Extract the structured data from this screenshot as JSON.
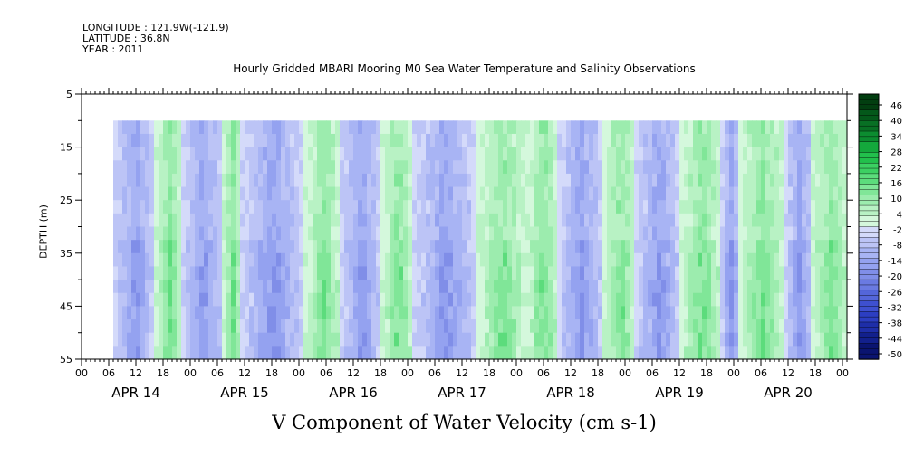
{
  "header": {
    "longitude": "LONGITUDE : 121.9W(-121.9)",
    "latitude": "LATITUDE : 36.8N",
    "year": "YEAR : 2011"
  },
  "chart_data": {
    "type": "heatmap",
    "title": "Hourly Gridded MBARI Mooring M0 Sea Water Temperature and Salinity Observations",
    "xlabel": "V Component of Water Velocity (cm s-1)",
    "ylabel": "DEPTH (m)",
    "y_axis": {
      "range": [
        5,
        55
      ],
      "inverted": true,
      "ticks": [
        5,
        15,
        25,
        35,
        45,
        55
      ]
    },
    "x_axis": {
      "hour_ticks": [
        "00",
        "06",
        "12",
        "18",
        "00",
        "06",
        "12",
        "18",
        "00",
        "06",
        "12",
        "18",
        "00",
        "06",
        "12",
        "18",
        "00",
        "06",
        "12",
        "18",
        "00",
        "06",
        "12",
        "18",
        "00",
        "06",
        "12",
        "18",
        "00"
      ],
      "day_labels": [
        "APR 14",
        "APR 15",
        "APR 16",
        "APR 17",
        "APR 18",
        "APR 19",
        "APR 20"
      ],
      "range_hours": [
        0,
        169
      ]
    },
    "data_extent": {
      "start_hour": 7,
      "end_hour": 169,
      "min_depth": 10,
      "max_depth": 55
    },
    "colorbar": {
      "labels": [
        "46",
        "40",
        "34",
        "28",
        "22",
        "16",
        "10",
        "4",
        "-2",
        "-8",
        "-14",
        "-20",
        "-26",
        "-32",
        "-38",
        "-44",
        "-50"
      ],
      "range": [
        -50,
        50
      ]
    },
    "bands": [
      {
        "start_hour": 7,
        "end_hour": 16,
        "sign": "negative"
      },
      {
        "start_hour": 16,
        "end_hour": 22,
        "sign": "positive"
      },
      {
        "start_hour": 22,
        "end_hour": 31,
        "sign": "negative"
      },
      {
        "start_hour": 31,
        "end_hour": 35,
        "sign": "positive"
      },
      {
        "start_hour": 35,
        "end_hour": 49,
        "sign": "negative"
      },
      {
        "start_hour": 49,
        "end_hour": 57,
        "sign": "positive"
      },
      {
        "start_hour": 57,
        "end_hour": 66,
        "sign": "negative"
      },
      {
        "start_hour": 66,
        "end_hour": 73,
        "sign": "positive"
      },
      {
        "start_hour": 73,
        "end_hour": 87,
        "sign": "negative"
      },
      {
        "start_hour": 87,
        "end_hour": 98,
        "sign": "positive"
      },
      {
        "start_hour": 98,
        "end_hour": 105,
        "sign": "positive"
      },
      {
        "start_hour": 105,
        "end_hour": 115,
        "sign": "negative"
      },
      {
        "start_hour": 115,
        "end_hour": 122,
        "sign": "positive"
      },
      {
        "start_hour": 122,
        "end_hour": 132,
        "sign": "negative"
      },
      {
        "start_hour": 132,
        "end_hour": 141,
        "sign": "positive"
      },
      {
        "start_hour": 141,
        "end_hour": 145,
        "sign": "negative"
      },
      {
        "start_hour": 145,
        "end_hour": 155,
        "sign": "positive"
      },
      {
        "start_hour": 155,
        "end_hour": 161,
        "sign": "negative"
      },
      {
        "start_hour": 161,
        "end_hour": 169,
        "sign": "positive"
      }
    ],
    "colors": {
      "positive_main": "#a8f0b8",
      "negative_main": "#a8b4f4",
      "border": "#000000",
      "background": "#ffffff"
    }
  }
}
